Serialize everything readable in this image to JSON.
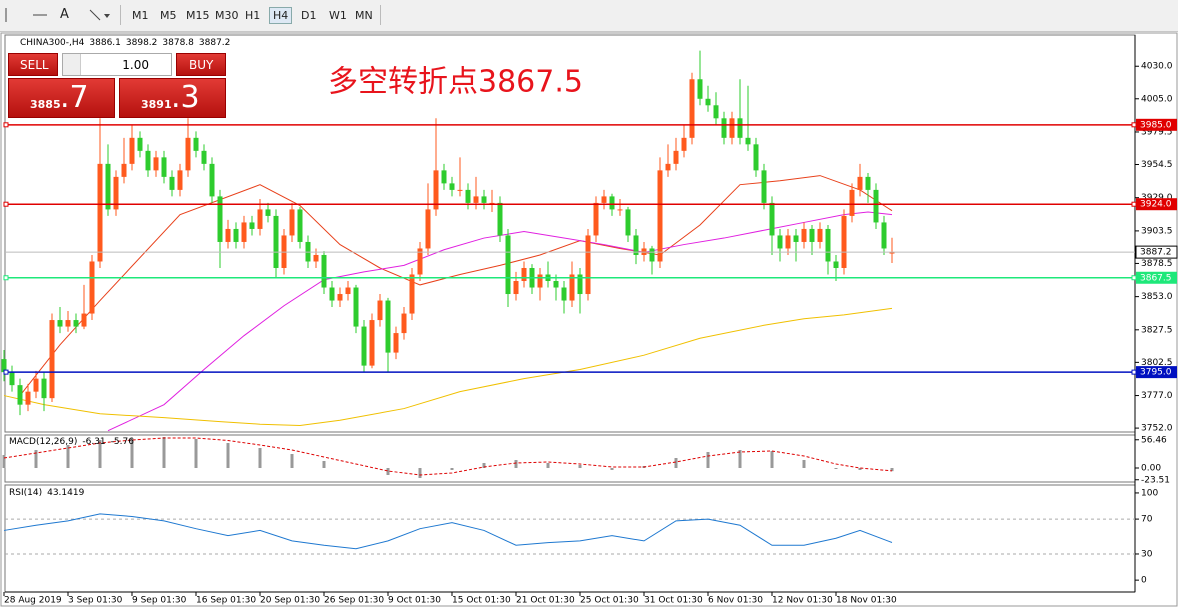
{
  "toolbar": {
    "font_button": "A",
    "timeframes": [
      "M1",
      "M5",
      "M15",
      "M30",
      "H1",
      "H4",
      "D1",
      "W1",
      "MN"
    ]
  },
  "trade_panel": {
    "sell": "SELL",
    "buy": "BUY",
    "lot": "1.00",
    "sell_price_main": "3885",
    "sell_price_pips": ".7",
    "buy_price_main": "3891",
    "buy_price_pips": ".3"
  },
  "chart_data": {
    "type": "candlestick",
    "symbol": "CHINA300-,H4",
    "annotation": "多空转折点3867.5",
    "up_color": "#ff5a1e",
    "down_color": "#2ecc2e",
    "ylim": [
      3749,
      4054
    ],
    "yticks": [
      {
        "value": 4030,
        "label": "4030.0"
      },
      {
        "value": 4005,
        "label": "4005.0"
      },
      3979.5,
      3954.5,
      {
        "value": 3929,
        "label": "3929.0"
      },
      3903.5,
      3878.5,
      {
        "value": 3853,
        "label": "3853.0"
      },
      3827.5,
      3802.5,
      {
        "value": 3777,
        "label": "3777.0"
      },
      {
        "value": 3752,
        "label": "3752.0"
      }
    ],
    "levels": [
      {
        "value": 3985,
        "label": "3985.0",
        "color": "#e00000"
      },
      {
        "value": 3924,
        "label": "3924.0",
        "color": "#e00000"
      },
      {
        "value": 3867.5,
        "label": "3867.5",
        "color": "#1ee87a"
      },
      {
        "value": 3795,
        "label": "3795.0",
        "color": "#0010c0"
      }
    ],
    "categories": [
      "28 Aug 2019",
      null,
      null,
      null,
      null,
      null,
      null,
      null,
      "3 Sep 01:30",
      null,
      null,
      null,
      null,
      null,
      null,
      null,
      "9 Sep 01:30",
      null,
      null,
      null,
      null,
      null,
      null,
      null,
      "16 Sep 01:30",
      null,
      null,
      null,
      null,
      null,
      null,
      null,
      "20 Sep 01:30",
      null,
      null,
      null,
      null,
      null,
      null,
      null,
      "26 Sep 01:30",
      null,
      null,
      null,
      null,
      null,
      null,
      null,
      "9 Oct 01:30",
      null,
      null,
      null,
      null,
      null,
      null,
      null,
      "15 Oct 01:30",
      null,
      null,
      null,
      null,
      null,
      null,
      null,
      "21 Oct 01:30",
      null,
      null,
      null,
      null,
      null,
      null,
      null,
      "25 Oct 01:30",
      null,
      null,
      null,
      null,
      null,
      null,
      null,
      "31 Oct 01:30",
      null,
      null,
      null,
      null,
      null,
      null,
      null,
      "6 Nov 01:30",
      null,
      null,
      null,
      null,
      null,
      null,
      null,
      "12 Nov 01:30",
      null,
      null,
      null,
      null,
      null,
      null,
      null,
      "18 Nov 01:30",
      null,
      null,
      null,
      null,
      null,
      null,
      null
    ],
    "candles": [
      [
        3805,
        3812,
        3788,
        3795
      ],
      [
        3795,
        3800,
        3780,
        3785
      ],
      [
        3785,
        3790,
        3762,
        3770
      ],
      [
        3770,
        3786,
        3765,
        3780
      ],
      [
        3780,
        3796,
        3775,
        3790
      ],
      [
        3790,
        3795,
        3765,
        3775
      ],
      [
        3775,
        3840,
        3772,
        3835
      ],
      [
        3835,
        3845,
        3825,
        3830
      ],
      [
        3830,
        3842,
        3826,
        3835
      ],
      [
        3835,
        3840,
        3825,
        3830
      ],
      [
        3830,
        3862,
        3828,
        3840
      ],
      [
        3840,
        3885,
        3835,
        3880
      ],
      [
        3880,
        3990,
        3875,
        3955
      ],
      [
        3955,
        3970,
        3915,
        3920
      ],
      [
        3920,
        3950,
        3915,
        3945
      ],
      [
        3945,
        3975,
        3940,
        3955
      ],
      [
        3955,
        3985,
        3950,
        3975
      ],
      [
        3975,
        3980,
        3960,
        3965
      ],
      [
        3965,
        3970,
        3945,
        3950
      ],
      [
        3950,
        3965,
        3945,
        3960
      ],
      [
        3960,
        3965,
        3940,
        3945
      ],
      [
        3945,
        3950,
        3930,
        3935
      ],
      [
        3935,
        3955,
        3930,
        3950
      ],
      [
        3950,
        3990,
        3945,
        3975
      ],
      [
        3975,
        3980,
        3960,
        3965
      ],
      [
        3965,
        3970,
        3950,
        3955
      ],
      [
        3955,
        3960,
        3925,
        3930
      ],
      [
        3930,
        3935,
        3875,
        3895
      ],
      [
        3895,
        3912,
        3890,
        3905
      ],
      [
        3905,
        3910,
        3890,
        3895
      ],
      [
        3895,
        3915,
        3890,
        3910
      ],
      [
        3910,
        3915,
        3900,
        3905
      ],
      [
        3905,
        3928,
        3900,
        3920
      ],
      [
        3920,
        3925,
        3910,
        3915
      ],
      [
        3915,
        3920,
        3868,
        3875
      ],
      [
        3875,
        3905,
        3870,
        3900
      ],
      [
        3900,
        3925,
        3895,
        3920
      ],
      [
        3920,
        3922,
        3890,
        3895
      ],
      [
        3895,
        3900,
        3875,
        3880
      ],
      [
        3880,
        3890,
        3875,
        3885
      ],
      [
        3885,
        3888,
        3855,
        3860
      ],
      [
        3860,
        3865,
        3845,
        3850
      ],
      [
        3850,
        3860,
        3845,
        3855
      ],
      [
        3855,
        3865,
        3850,
        3860
      ],
      [
        3860,
        3862,
        3825,
        3830
      ],
      [
        3830,
        3835,
        3795,
        3800
      ],
      [
        3800,
        3840,
        3798,
        3835
      ],
      [
        3835,
        3855,
        3830,
        3850
      ],
      [
        3850,
        3852,
        3795,
        3810
      ],
      [
        3810,
        3830,
        3805,
        3825
      ],
      [
        3825,
        3845,
        3820,
        3840
      ],
      [
        3840,
        3875,
        3835,
        3870
      ],
      [
        3870,
        3895,
        3865,
        3890
      ],
      [
        3890,
        3940,
        3885,
        3920
      ],
      [
        3920,
        3990,
        3915,
        3950
      ],
      [
        3950,
        3955,
        3935,
        3940
      ],
      [
        3940,
        3945,
        3930,
        3935
      ],
      [
        3935,
        3960,
        3930,
        3935
      ],
      [
        3935,
        3940,
        3920,
        3925
      ],
      [
        3925,
        3945,
        3920,
        3930
      ],
      [
        3930,
        3935,
        3920,
        3925
      ],
      [
        3925,
        3935,
        3918,
        3925
      ],
      [
        3925,
        3930,
        3895,
        3900
      ],
      [
        3900,
        3905,
        3845,
        3855
      ],
      [
        3855,
        3872,
        3850,
        3865
      ],
      [
        3865,
        3880,
        3860,
        3875
      ],
      [
        3875,
        3878,
        3855,
        3860
      ],
      [
        3860,
        3875,
        3850,
        3870
      ],
      [
        3870,
        3880,
        3860,
        3865
      ],
      [
        3865,
        3870,
        3850,
        3860
      ],
      [
        3860,
        3865,
        3840,
        3850
      ],
      [
        3850,
        3880,
        3845,
        3870
      ],
      [
        3870,
        3875,
        3840,
        3855
      ],
      [
        3855,
        3905,
        3850,
        3900
      ],
      [
        3900,
        3930,
        3895,
        3925
      ],
      [
        3925,
        3935,
        3920,
        3930
      ],
      [
        3930,
        3932,
        3915,
        3920
      ],
      [
        3920,
        3928,
        3915,
        3920
      ],
      [
        3920,
        3922,
        3895,
        3900
      ],
      [
        3900,
        3905,
        3878,
        3885
      ],
      [
        3885,
        3895,
        3880,
        3890
      ],
      [
        3890,
        3892,
        3870,
        3880
      ],
      [
        3880,
        3960,
        3875,
        3950
      ],
      [
        3950,
        3970,
        3945,
        3955
      ],
      [
        3955,
        3975,
        3950,
        3965
      ],
      [
        3965,
        3985,
        3960,
        3975
      ],
      [
        3975,
        4025,
        3970,
        4020
      ],
      [
        4020,
        4042,
        4000,
        4005
      ],
      [
        4005,
        4015,
        3995,
        4000
      ],
      [
        4000,
        4010,
        3985,
        3990
      ],
      [
        3990,
        3995,
        3970,
        3975
      ],
      [
        3975,
        3995,
        3970,
        3990
      ],
      [
        3990,
        4020,
        3970,
        3975
      ],
      [
        3975,
        4015,
        3965,
        3970
      ],
      [
        3970,
        3975,
        3945,
        3950
      ],
      [
        3950,
        3955,
        3920,
        3925
      ],
      [
        3925,
        3930,
        3885,
        3900
      ],
      [
        3900,
        3905,
        3880,
        3890
      ],
      [
        3890,
        3905,
        3885,
        3900
      ],
      [
        3900,
        3905,
        3880,
        3895
      ],
      [
        3895,
        3910,
        3890,
        3905
      ],
      [
        3905,
        3908,
        3885,
        3895
      ],
      [
        3895,
        3910,
        3890,
        3905
      ],
      [
        3905,
        3908,
        3870,
        3880
      ],
      [
        3880,
        3885,
        3865,
        3875
      ],
      [
        3875,
        3920,
        3870,
        3915
      ],
      [
        3915,
        3940,
        3910,
        3935
      ],
      [
        3935,
        3955,
        3930,
        3945
      ],
      [
        3945,
        3948,
        3925,
        3935
      ],
      [
        3935,
        3940,
        3905,
        3910
      ],
      [
        3910,
        3915,
        3885,
        3890
      ],
      [
        3886.1,
        3898.2,
        3878.8,
        3887.2
      ]
    ],
    "moving_averages": [
      {
        "color": "#e8401a",
        "x": [
          2,
          7,
          12,
          22,
          32,
          37,
          42,
          47,
          52,
          57,
          62,
          67,
          72,
          77,
          82,
          87,
          92,
          97,
          102,
          107,
          111
        ],
        "values": [
          3777,
          3816,
          3850,
          3916,
          3939,
          3923,
          3893,
          3875,
          3862,
          3870,
          3877,
          3885,
          3896,
          3890,
          3885,
          3908,
          3939,
          3942,
          3946,
          3935,
          3919
        ]
      },
      {
        "color": "#e020e0",
        "x": [
          13,
          20,
          25,
          30,
          35,
          40,
          45,
          50,
          55,
          60,
          65,
          70,
          75,
          80,
          85,
          90,
          95,
          100,
          105,
          108,
          111
        ],
        "values": [
          3750,
          3770,
          3797,
          3823,
          3846,
          3866,
          3872,
          3877,
          3889,
          3898,
          3903,
          3898,
          3893,
          3887,
          3893,
          3898,
          3904,
          3910,
          3916,
          3918,
          3916
        ]
      },
      {
        "color": "#f0c000",
        "x": [
          0,
          5,
          12,
          20,
          27,
          32,
          37,
          42,
          50,
          57,
          65,
          72,
          80,
          87,
          95,
          100,
          105,
          111
        ],
        "values": [
          3777,
          3770,
          3763,
          3760,
          3757,
          3755,
          3754,
          3758,
          3767,
          3780,
          3790,
          3797,
          3808,
          3821,
          3831,
          3836,
          3839,
          3844
        ]
      }
    ],
    "macd": {
      "title": "MACD(12,26,9)",
      "ylim": [
        -28,
        66
      ],
      "yticks": [
        56.46,
        {
          "value": 0,
          "label": "0.00"
        },
        -23.51
      ],
      "x": [
        0,
        4,
        8,
        12,
        16,
        20,
        24,
        28,
        32,
        36,
        40,
        44,
        48,
        52,
        56,
        60,
        64,
        68,
        72,
        76,
        80,
        84,
        88,
        92,
        96,
        100,
        104,
        107,
        111
      ],
      "main": [
        26,
        36,
        46,
        56,
        60,
        62,
        58,
        50,
        40,
        28,
        14,
        0,
        -14,
        -20,
        -4,
        10,
        16,
        10,
        6,
        -4,
        4,
        20,
        32,
        36,
        34,
        16,
        -2,
        -4,
        -6.31
      ],
      "signal": [
        20,
        30,
        40,
        50,
        56,
        60,
        60,
        55,
        46,
        36,
        22,
        8,
        -6,
        -14,
        -10,
        2,
        10,
        12,
        8,
        2,
        2,
        12,
        24,
        32,
        34,
        24,
        8,
        0,
        -5.76
      ]
    },
    "rsi": {
      "title": "RSI(14)",
      "ylim": [
        -13.6,
        109.1
      ],
      "yticks": [
        100,
        70,
        30,
        0
      ],
      "color": "#1e78d0",
      "x": [
        0,
        4,
        8,
        12,
        16,
        20,
        24,
        28,
        32,
        36,
        40,
        44,
        48,
        52,
        56,
        60,
        64,
        68,
        72,
        76,
        80,
        84,
        88,
        92,
        96,
        100,
        104,
        107,
        111
      ],
      "values": [
        57,
        63,
        68,
        76,
        73,
        68,
        59,
        51,
        57,
        45,
        40,
        36,
        45,
        59,
        66,
        57,
        40,
        43,
        45,
        51,
        45,
        68,
        70,
        63,
        40,
        40,
        48,
        57,
        43.1419
      ]
    }
  }
}
